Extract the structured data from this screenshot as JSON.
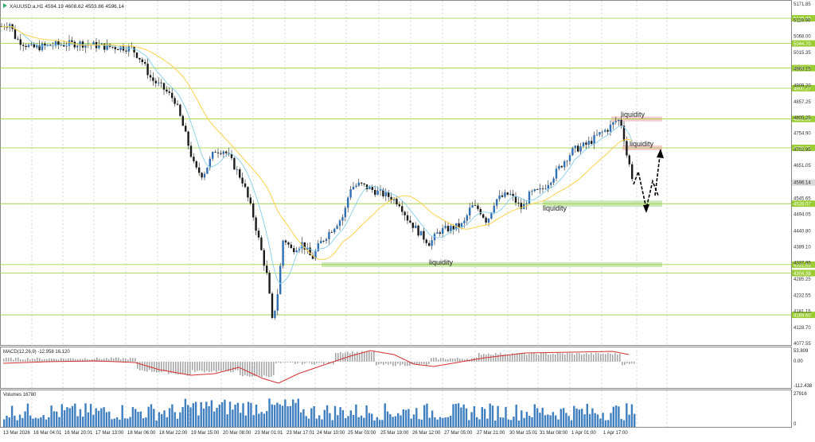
{
  "header": {
    "symbol_info": "XAUUSD.a,H1  4594.19 4608.62 4553.86 4596.14"
  },
  "main_price_axis": {
    "ticks": [
      "5171.85",
      "5119.90",
      "5068.00",
      "5015.35",
      "4963.15",
      "4909.20",
      "4857.25",
      "4805.25",
      "4754.90",
      "4702.95",
      "4651.05",
      "4596.14",
      "4545.65",
      "4494.05",
      "4440.80",
      "4389.10",
      "4337.95",
      "4285.25",
      "4232.55",
      "4181.15",
      "4128.70",
      "4077.55"
    ],
    "current_price": "4596.14"
  },
  "levels": [
    {
      "price": "5125.80",
      "color": "#9acd32"
    },
    {
      "price": "5044.70",
      "color": "#9acd32"
    },
    {
      "price": "4965.13",
      "color": "#9acd32"
    },
    {
      "price": "4900.27",
      "color": "#9acd32"
    },
    {
      "price": "4801.09",
      "color": "#9acd32"
    },
    {
      "price": "4708.05",
      "color": "#9acd32"
    },
    {
      "price": "4528.07",
      "color": "#9acd32"
    },
    {
      "price": "4331.63",
      "color": "#9acd32"
    },
    {
      "price": "4304.38",
      "color": "#9acd32"
    },
    {
      "price": "4169.60",
      "color": "#9acd32"
    }
  ],
  "annotations": {
    "liquidity_top": "liquidity",
    "liquidity_mid": "liquidity",
    "liquidity_right": "liquidity",
    "liquidity_low": "liquidity"
  },
  "macd": {
    "label": "MACD(12,26,9) -12.958 16.120",
    "ticks": [
      "53.809",
      "0.00",
      "-112.438"
    ]
  },
  "volumes": {
    "label": "Volumes 16780",
    "ticks": [
      "27916",
      "0"
    ]
  },
  "time_axis": [
    "13 Mar 2026",
    "16 Mar 04:01",
    "16 Mar 20:01",
    "17 Mar 13:00",
    "18 Mar 06:00",
    "18 Mar 22:00",
    "19 Mar 15:00",
    "20 Mar 08:00",
    "23 Mar 01:01",
    "23 Mar 17:01",
    "24 Mar 10:00",
    "25 Mar 03:00",
    "25 Mar 19:00",
    "26 Mar 12:00",
    "27 Mar 05:00",
    "27 Mar 21:00",
    "30 Mar 15:01",
    "31 Mar 08:00",
    "1 Apr 01:00",
    "1 Apr 17:00"
  ],
  "colors": {
    "bull": "#2e6fb5",
    "bear": "#1a1a1a",
    "ma_fast": "#87ceeb",
    "ma_slow": "#ffd24a",
    "level": "#9acd32",
    "zone_green": "#c8e6b0",
    "zone_red": "#f3c2c2",
    "macd_signal": "#d32f2f",
    "macd_hist": "#a8a8a8",
    "volume": "#3f7fbf"
  }
}
